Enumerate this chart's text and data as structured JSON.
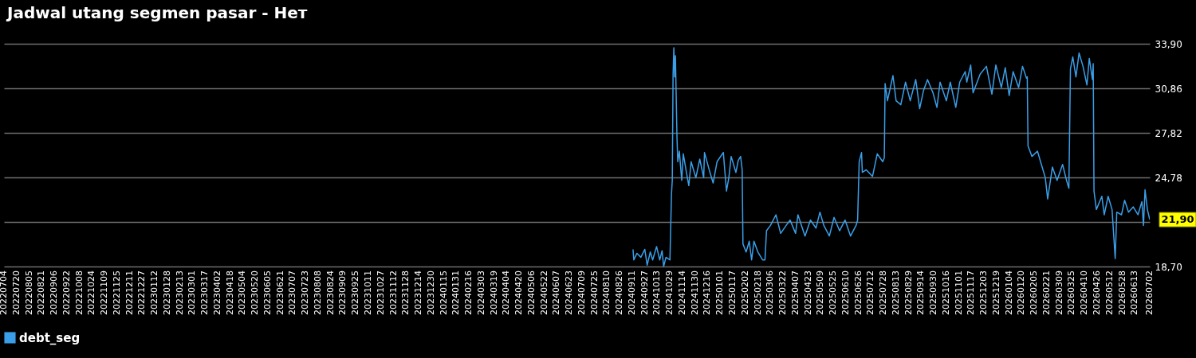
{
  "chart_data": {
    "type": "line",
    "title": "Jadwal utang segmen pasar - Нет",
    "x": [
      "2024-09-12",
      "2024-09-13",
      "2024-09-17",
      "2024-09-22",
      "2024-09-27",
      "2024-09-30",
      "2024-10-04",
      "2024-10-07",
      "2024-10-12",
      "2024-10-16",
      "2024-10-19",
      "2024-10-21",
      "2024-10-24",
      "2024-10-29",
      "2024-10-31",
      "2024-11-01",
      "2024-11-02",
      "2024-11-03",
      "2024-11-04",
      "2024-11-05",
      "2024-11-07",
      "2024-11-08",
      "2024-11-10",
      "2024-11-13",
      "2024-11-15",
      "2024-11-19",
      "2024-11-22",
      "2024-11-25",
      "2024-12-01",
      "2024-12-06",
      "2024-12-11",
      "2024-12-12",
      "2024-12-18",
      "2024-12-23",
      "2024-12-28",
      "2025-01-05",
      "2025-01-09",
      "2025-01-12",
      "2025-01-15",
      "2025-01-21",
      "2025-01-24",
      "2025-01-27",
      "2025-01-29",
      "2025-01-30",
      "2025-02-03",
      "2025-02-07",
      "2025-02-10",
      "2025-02-13",
      "2025-02-18",
      "2025-02-24",
      "2025-02-27",
      "2025-03-01",
      "2025-03-06",
      "2025-03-13",
      "2025-03-19",
      "2025-03-26",
      "2025-03-31",
      "2025-04-07",
      "2025-04-10",
      "2025-04-19",
      "2025-04-26",
      "2025-05-03",
      "2025-05-08",
      "2025-05-13",
      "2025-05-20",
      "2025-05-26",
      "2025-06-02",
      "2025-06-09",
      "2025-06-16",
      "2025-06-23",
      "2025-06-25",
      "2025-06-27",
      "2025-06-30",
      "2025-07-01",
      "2025-07-06",
      "2025-07-14",
      "2025-07-20",
      "2025-07-27",
      "2025-07-29",
      "2025-07-30",
      "2025-08-02",
      "2025-08-09",
      "2025-08-13",
      "2025-08-19",
      "2025-08-25",
      "2025-08-31",
      "2025-09-07",
      "2025-09-12",
      "2025-09-17",
      "2025-09-22",
      "2025-09-29",
      "2025-10-04",
      "2025-10-08",
      "2025-10-16",
      "2025-10-21",
      "2025-10-28",
      "2025-11-02",
      "2025-11-09",
      "2025-11-11",
      "2025-11-16",
      "2025-11-19",
      "2025-11-28",
      "2025-12-06",
      "2025-12-13",
      "2025-12-18",
      "2025-12-25",
      "2025-12-30",
      "2026-01-04",
      "2026-01-09",
      "2026-01-16",
      "2026-01-21",
      "2026-01-26",
      "2026-01-27",
      "2026-01-28",
      "2026-02-02",
      "2026-02-09",
      "2026-02-14",
      "2026-02-19",
      "2026-02-22",
      "2026-02-28",
      "2026-03-06",
      "2026-03-13",
      "2026-03-18",
      "2026-03-21",
      "2026-03-23",
      "2026-03-26",
      "2026-03-30",
      "2026-04-03",
      "2026-04-08",
      "2026-04-13",
      "2026-04-16",
      "2026-04-20",
      "2026-04-21",
      "2026-04-22",
      "2026-04-25",
      "2026-05-02",
      "2026-05-05",
      "2026-05-10",
      "2026-05-15",
      "2026-05-19",
      "2026-05-21",
      "2026-05-27",
      "2026-05-31",
      "2026-06-05",
      "2026-06-11",
      "2026-06-17",
      "2026-06-22",
      "2026-06-24",
      "2026-06-26",
      "2026-06-29",
      "2026-07-02"
    ],
    "series": [
      {
        "name": "debt_seg",
        "color": "#3a9fe8",
        "values": [
          19.87,
          19.15,
          19.6,
          19.33,
          19.87,
          18.79,
          19.69,
          19.15,
          20.06,
          19.15,
          19.78,
          18.7,
          19.33,
          19.15,
          23.67,
          24.58,
          31.82,
          33.63,
          31.64,
          33.09,
          27.47,
          25.85,
          26.57,
          24.58,
          26.39,
          25.12,
          24.22,
          25.85,
          24.76,
          26.03,
          24.76,
          26.48,
          25.3,
          24.4,
          25.85,
          26.48,
          23.85,
          24.76,
          26.21,
          25.12,
          25.94,
          26.21,
          25.3,
          20.24,
          19.69,
          20.42,
          19.15,
          20.42,
          19.69,
          19.15,
          19.15,
          21.14,
          21.5,
          22.23,
          20.96,
          21.5,
          21.87,
          20.96,
          22.23,
          20.78,
          21.87,
          21.32,
          22.41,
          21.5,
          20.78,
          22.05,
          21.14,
          21.87,
          20.78,
          21.5,
          21.87,
          25.85,
          26.48,
          25.12,
          25.3,
          24.85,
          26.39,
          25.85,
          26.12,
          31.19,
          30.01,
          31.73,
          30.01,
          29.74,
          31.28,
          30.01,
          31.46,
          29.47,
          30.73,
          31.46,
          30.55,
          29.56,
          31.28,
          30.01,
          31.28,
          29.56,
          31.28,
          32.0,
          31.28,
          32.45,
          30.55,
          31.82,
          32.36,
          30.46,
          32.45,
          30.91,
          32.27,
          30.37,
          32.0,
          30.91,
          32.36,
          31.55,
          31.64,
          26.93,
          26.21,
          26.57,
          25.66,
          24.76,
          23.31,
          25.48,
          24.58,
          25.66,
          24.58,
          24.04,
          32.18,
          33.0,
          31.64,
          33.27,
          32.36,
          31.09,
          32.9,
          31.46,
          32.54,
          23.85,
          22.59,
          23.49,
          22.23,
          23.49,
          22.59,
          19.24,
          22.41,
          22.23,
          23.22,
          22.41,
          22.77,
          22.23,
          23.13,
          21.5,
          23.94,
          22.59,
          21.9
        ]
      }
    ],
    "xlim": [
      "2022-07-04",
      "2026-07-02"
    ],
    "xticks": [
      {
        "value": "2022-07-04",
        "label": "20220704"
      },
      {
        "value": "2022-07-20",
        "label": "20220720"
      },
      {
        "value": "2022-08-05",
        "label": "20220805"
      },
      {
        "value": "2022-08-21",
        "label": "20220821"
      },
      {
        "value": "2022-09-06",
        "label": "20220906"
      },
      {
        "value": "2022-09-22",
        "label": "20220922"
      },
      {
        "value": "2022-10-08",
        "label": "20221008"
      },
      {
        "value": "2022-10-24",
        "label": "20221024"
      },
      {
        "value": "2022-11-09",
        "label": "20221109"
      },
      {
        "value": "2022-11-25",
        "label": "20221125"
      },
      {
        "value": "2022-12-11",
        "label": "20221211"
      },
      {
        "value": "2022-12-27",
        "label": "20221227"
      },
      {
        "value": "2023-01-12",
        "label": "20230112"
      },
      {
        "value": "2023-01-28",
        "label": "20230128"
      },
      {
        "value": "2023-02-13",
        "label": "20230213"
      },
      {
        "value": "2023-03-01",
        "label": "20230301"
      },
      {
        "value": "2023-03-17",
        "label": "20230317"
      },
      {
        "value": "2023-04-02",
        "label": "20230402"
      },
      {
        "value": "2023-04-18",
        "label": "20230418"
      },
      {
        "value": "2023-05-04",
        "label": "20230504"
      },
      {
        "value": "2023-05-20",
        "label": "20230520"
      },
      {
        "value": "2023-06-05",
        "label": "20230605"
      },
      {
        "value": "2023-06-21",
        "label": "20230621"
      },
      {
        "value": "2023-07-07",
        "label": "20230707"
      },
      {
        "value": "2023-07-23",
        "label": "20230723"
      },
      {
        "value": "2023-08-08",
        "label": "20230808"
      },
      {
        "value": "2023-08-24",
        "label": "20230824"
      },
      {
        "value": "2023-09-09",
        "label": "20230909"
      },
      {
        "value": "2023-09-25",
        "label": "20230925"
      },
      {
        "value": "2023-10-11",
        "label": "20231011"
      },
      {
        "value": "2023-10-27",
        "label": "20231027"
      },
      {
        "value": "2023-11-12",
        "label": "20231112"
      },
      {
        "value": "2023-11-28",
        "label": "20231128"
      },
      {
        "value": "2023-12-14",
        "label": "20231214"
      },
      {
        "value": "2023-12-30",
        "label": "20231230"
      },
      {
        "value": "2024-01-15",
        "label": "20240115"
      },
      {
        "value": "2024-01-31",
        "label": "20240131"
      },
      {
        "value": "2024-02-16",
        "label": "20240216"
      },
      {
        "value": "2024-03-03",
        "label": "20240303"
      },
      {
        "value": "2024-03-19",
        "label": "20240319"
      },
      {
        "value": "2024-04-04",
        "label": "20240404"
      },
      {
        "value": "2024-04-20",
        "label": "20240420"
      },
      {
        "value": "2024-05-06",
        "label": "20240506"
      },
      {
        "value": "2024-05-22",
        "label": "20240522"
      },
      {
        "value": "2024-06-07",
        "label": "20240607"
      },
      {
        "value": "2024-06-23",
        "label": "20240623"
      },
      {
        "value": "2024-07-09",
        "label": "20240709"
      },
      {
        "value": "2024-07-25",
        "label": "20240725"
      },
      {
        "value": "2024-08-10",
        "label": "20240810"
      },
      {
        "value": "2024-08-26",
        "label": "20240826"
      },
      {
        "value": "2024-09-11",
        "label": "20240911"
      },
      {
        "value": "2024-09-27",
        "label": "20240927"
      },
      {
        "value": "2024-10-13",
        "label": "20241013"
      },
      {
        "value": "2024-10-29",
        "label": "20241029"
      },
      {
        "value": "2024-11-14",
        "label": "20241114"
      },
      {
        "value": "2024-11-30",
        "label": "20241130"
      },
      {
        "value": "2024-12-16",
        "label": "20241216"
      },
      {
        "value": "2025-01-01",
        "label": "20250101"
      },
      {
        "value": "2025-01-17",
        "label": "20250117"
      },
      {
        "value": "2025-02-02",
        "label": "20250202"
      },
      {
        "value": "2025-02-18",
        "label": "20250218"
      },
      {
        "value": "2025-03-06",
        "label": "20250306"
      },
      {
        "value": "2025-03-22",
        "label": "20250322"
      },
      {
        "value": "2025-04-07",
        "label": "20250407"
      },
      {
        "value": "2025-04-23",
        "label": "20250423"
      },
      {
        "value": "2025-05-09",
        "label": "20250509"
      },
      {
        "value": "2025-05-25",
        "label": "20250525"
      },
      {
        "value": "2025-06-10",
        "label": "20250610"
      },
      {
        "value": "2025-06-26",
        "label": "20250626"
      },
      {
        "value": "2025-07-12",
        "label": "20250712"
      },
      {
        "value": "2025-07-28",
        "label": "20250728"
      },
      {
        "value": "2025-08-13",
        "label": "20250813"
      },
      {
        "value": "2025-08-29",
        "label": "20250829"
      },
      {
        "value": "2025-09-14",
        "label": "20250914"
      },
      {
        "value": "2025-09-30",
        "label": "20250930"
      },
      {
        "value": "2025-10-16",
        "label": "20251016"
      },
      {
        "value": "2025-11-01",
        "label": "20251101"
      },
      {
        "value": "2025-11-17",
        "label": "20251117"
      },
      {
        "value": "2025-12-03",
        "label": "20251203"
      },
      {
        "value": "2025-12-19",
        "label": "20251219"
      },
      {
        "value": "2026-01-04",
        "label": "20260104"
      },
      {
        "value": "2026-01-20",
        "label": "20260120"
      },
      {
        "value": "2026-02-05",
        "label": "20260205"
      },
      {
        "value": "2026-02-21",
        "label": "20260221"
      },
      {
        "value": "2026-03-09",
        "label": "20260309"
      },
      {
        "value": "2026-03-25",
        "label": "20260325"
      },
      {
        "value": "2026-04-10",
        "label": "20260410"
      },
      {
        "value": "2026-04-26",
        "label": "20260426"
      },
      {
        "value": "2026-05-12",
        "label": "20260512"
      },
      {
        "value": "2026-05-28",
        "label": "20260528"
      },
      {
        "value": "2026-06-13",
        "label": "20260613"
      },
      {
        "value": "2026-07-02",
        "label": "20260702"
      }
    ],
    "ylim": [
      18.7,
      33.9
    ],
    "yticks": [
      {
        "value": 18.7,
        "label": "18,70"
      },
      {
        "value": 21.74,
        "label": null
      },
      {
        "value": 24.78,
        "label": "24,78"
      },
      {
        "value": 27.82,
        "label": "27,82"
      },
      {
        "value": 30.86,
        "label": "30,86"
      },
      {
        "value": 33.9,
        "label": "33,90"
      }
    ],
    "grid": "y",
    "legend": "bottom left",
    "annotations": [
      {
        "text": "21,90",
        "x": "2026-07-02",
        "y": 21.9
      }
    ]
  }
}
